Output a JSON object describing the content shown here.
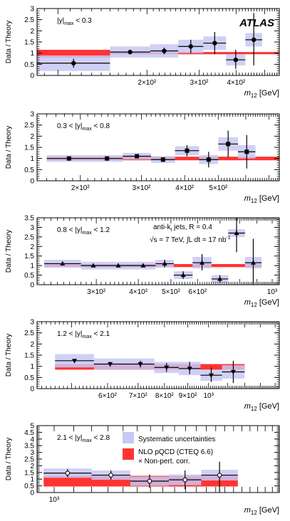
{
  "figure": {
    "experiment_label": "ATLAS",
    "y_axis_label": "Data / Theory",
    "x_axis_label_main": "m",
    "x_axis_label_sub": "12",
    "x_axis_label_unit": " [GeV]",
    "jet_algorithm": "anti-k",
    "jet_algorithm_sub": "t",
    "jet_algorithm_rest": " jets, R = 0.4",
    "energy_lumi": "√s = 7 TeV, ∫L dt = 17 nb",
    "energy_lumi_sup": "-1",
    "legend": {
      "systematic": "Systematic uncertainties",
      "theory_line1": "NLO pQCD (CTEQ 6.6)",
      "theory_line2": "× Non-pert. corr."
    },
    "colors": {
      "systematic_band": "#c8c8f5",
      "theory_band": "#ff3333",
      "points": "#000000"
    }
  },
  "chart_data": [
    {
      "type": "scatter",
      "title": "|y|max < 0.3",
      "x_scale": "log",
      "xlim": [
        85,
        560
      ],
      "ylim": [
        0,
        3
      ],
      "yticks": [
        0,
        0.5,
        1,
        1.5,
        2,
        2.5,
        3
      ],
      "xtick_labels": [
        {
          "x": 200,
          "label": "2×10²"
        },
        {
          "x": 300,
          "label": "3×10²"
        },
        {
          "x": 400,
          "label": "4×10²"
        }
      ],
      "marker": "circle",
      "points": [
        {
          "xlo": 85,
          "xhi": 150,
          "y": 0.55,
          "ylo": 0.35,
          "yhi": 0.75,
          "syst": 0.35
        },
        {
          "xlo": 150,
          "xhi": 205,
          "y": 1.05,
          "ylo": 1.0,
          "yhi": 1.1,
          "syst": 0.25
        },
        {
          "xlo": 205,
          "xhi": 255,
          "y": 1.1,
          "ylo": 0.95,
          "yhi": 1.25,
          "syst": 0.3
        },
        {
          "xlo": 255,
          "xhi": 310,
          "y": 1.3,
          "ylo": 1.0,
          "yhi": 1.6,
          "syst": 0.3
        },
        {
          "xlo": 310,
          "xhi": 370,
          "y": 1.45,
          "ylo": 0.95,
          "yhi": 1.95,
          "syst": 0.3
        },
        {
          "xlo": 370,
          "xhi": 430,
          "y": 0.7,
          "ylo": 0.3,
          "yhi": 1.15,
          "syst": 0.25
        },
        {
          "xlo": 430,
          "xhi": 490,
          "y": 1.6,
          "ylo": 0.45,
          "yhi": 2.8,
          "syst": 0.3
        }
      ],
      "theory": [
        {
          "xlo": 85,
          "xhi": 150,
          "lo": 0.8,
          "hi": 1.15
        },
        {
          "xlo": 150,
          "xhi": 560,
          "lo": 0.95,
          "hi": 1.05
        }
      ]
    },
    {
      "type": "scatter",
      "title": "0.3 < |y|max < 0.8",
      "x_scale": "log",
      "xlim": [
        150,
        750
      ],
      "ylim": [
        0,
        3
      ],
      "yticks": [
        0,
        0.5,
        1,
        1.5,
        2,
        2.5,
        3
      ],
      "xtick_labels": [
        {
          "x": 200,
          "label": "2×10²"
        },
        {
          "x": 300,
          "label": "3×10²"
        },
        {
          "x": 400,
          "label": "4×10²"
        },
        {
          "x": 500,
          "label": "5×10²"
        }
      ],
      "marker": "square",
      "points": [
        {
          "xlo": 160,
          "xhi": 215,
          "y": 1.0,
          "ylo": 0.95,
          "yhi": 1.05,
          "syst": 0.15
        },
        {
          "xlo": 215,
          "xhi": 265,
          "y": 1.0,
          "ylo": 0.95,
          "yhi": 1.05,
          "syst": 0.15
        },
        {
          "xlo": 265,
          "xhi": 320,
          "y": 1.1,
          "ylo": 1.05,
          "yhi": 1.15,
          "syst": 0.15
        },
        {
          "xlo": 320,
          "xhi": 375,
          "y": 0.95,
          "ylo": 0.85,
          "yhi": 1.05,
          "syst": 0.15
        },
        {
          "xlo": 375,
          "xhi": 440,
          "y": 1.35,
          "ylo": 1.1,
          "yhi": 1.6,
          "syst": 0.2
        },
        {
          "xlo": 440,
          "xhi": 500,
          "y": 0.95,
          "ylo": 0.6,
          "yhi": 1.3,
          "syst": 0.2
        },
        {
          "xlo": 500,
          "xhi": 570,
          "y": 1.65,
          "ylo": 1.05,
          "yhi": 2.25,
          "syst": 0.3
        },
        {
          "xlo": 570,
          "xhi": 640,
          "y": 1.3,
          "ylo": 0.55,
          "yhi": 2.05,
          "syst": 0.3
        }
      ],
      "theory": [
        {
          "xlo": 160,
          "xhi": 750,
          "lo": 0.92,
          "hi": 1.08
        }
      ]
    },
    {
      "type": "scatter",
      "title": "0.8 < |y|max < 1.2",
      "x_scale": "log",
      "xlim": [
        200,
        1050
      ],
      "ylim": [
        0,
        3.5
      ],
      "yticks": [
        0,
        0.5,
        1,
        1.5,
        2,
        2.5,
        3,
        3.5
      ],
      "xtick_labels": [
        {
          "x": 300,
          "label": "3×10²"
        },
        {
          "x": 400,
          "label": "4×10²"
        },
        {
          "x": 500,
          "label": "5×10²"
        },
        {
          "x": 600,
          "label": "6×10²"
        },
        {
          "x": 1000,
          "label": "10³"
        }
      ],
      "marker": "triangle-up",
      "points": [
        {
          "xlo": 210,
          "xhi": 270,
          "y": 1.1,
          "ylo": 1.05,
          "yhi": 1.15,
          "syst": 0.2
        },
        {
          "xlo": 270,
          "xhi": 320,
          "y": 1.0,
          "ylo": 0.95,
          "yhi": 1.05,
          "syst": 0.2
        },
        {
          "xlo": 320,
          "xhi": 380,
          "y": 1.0,
          "ylo": 0.95,
          "yhi": 1.05,
          "syst": 0.2
        },
        {
          "xlo": 380,
          "xhi": 450,
          "y": 1.0,
          "ylo": 0.95,
          "yhi": 1.05,
          "syst": 0.2
        },
        {
          "xlo": 450,
          "xhi": 510,
          "y": 1.1,
          "ylo": 0.9,
          "yhi": 1.3,
          "syst": 0.2
        },
        {
          "xlo": 510,
          "xhi": 580,
          "y": 0.5,
          "ylo": 0.3,
          "yhi": 0.7,
          "syst": 0.2
        },
        {
          "xlo": 580,
          "xhi": 660,
          "y": 1.15,
          "ylo": 0.75,
          "yhi": 1.6,
          "syst": 0.3
        },
        {
          "xlo": 660,
          "xhi": 740,
          "y": 0.3,
          "ylo": 0.1,
          "yhi": 0.5,
          "syst": 0.2
        },
        {
          "xlo": 740,
          "xhi": 830,
          "y": 2.7,
          "ylo": 1.7,
          "yhi": 3.5,
          "syst": 0.2
        },
        {
          "xlo": 830,
          "xhi": 930,
          "y": 1.15,
          "ylo": 0.0,
          "yhi": 2.4,
          "syst": 0.3
        }
      ],
      "theory": [
        {
          "xlo": 210,
          "xhi": 930,
          "lo": 0.92,
          "hi": 1.08
        }
      ]
    },
    {
      "type": "scatter",
      "title": "1.2 < |y|max < 2.1",
      "x_scale": "log",
      "xlim": [
        420,
        1430
      ],
      "ylim": [
        0,
        3
      ],
      "yticks": [
        0,
        0.5,
        1,
        1.5,
        2,
        2.5,
        3
      ],
      "xtick_labels": [
        {
          "x": 600,
          "label": "6×10²"
        },
        {
          "x": 700,
          "label": "7×10²"
        },
        {
          "x": 800,
          "label": "8×10²"
        },
        {
          "x": 900,
          "label": "9×10²"
        },
        {
          "x": 1000,
          "label": "10³"
        }
      ],
      "marker": "triangle-down",
      "points": [
        {
          "xlo": 460,
          "xhi": 560,
          "y": 1.25,
          "ylo": 1.2,
          "yhi": 1.3,
          "syst": 0.3
        },
        {
          "xlo": 560,
          "xhi": 660,
          "y": 1.1,
          "ylo": 1.0,
          "yhi": 1.2,
          "syst": 0.25
        },
        {
          "xlo": 660,
          "xhi": 760,
          "y": 1.1,
          "ylo": 0.95,
          "yhi": 1.25,
          "syst": 0.25
        },
        {
          "xlo": 760,
          "xhi": 860,
          "y": 0.95,
          "ylo": 0.75,
          "yhi": 1.15,
          "syst": 0.25
        },
        {
          "xlo": 860,
          "xhi": 960,
          "y": 0.9,
          "ylo": 0.65,
          "yhi": 1.2,
          "syst": 0.3
        },
        {
          "xlo": 960,
          "xhi": 1070,
          "y": 0.6,
          "ylo": 0.3,
          "yhi": 0.95,
          "syst": 0.25
        },
        {
          "xlo": 1070,
          "xhi": 1200,
          "y": 0.75,
          "ylo": 0.25,
          "yhi": 1.25,
          "syst": 0.3
        }
      ],
      "theory": [
        {
          "xlo": 460,
          "xhi": 1200,
          "lo": 0.85,
          "hi": 1.1
        }
      ]
    },
    {
      "type": "scatter",
      "title": "2.1 < |y|max < 2.8",
      "x_scale": "log",
      "xlim": [
        920,
        3000
      ],
      "ylim": [
        0,
        5
      ],
      "yticks": [
        0,
        0.5,
        1,
        1.5,
        2,
        2.5,
        3,
        3.5,
        4,
        4.5,
        5
      ],
      "xtick_labels": [
        {
          "x": 1000,
          "label": "10³"
        }
      ],
      "marker": "circle-open",
      "points": [
        {
          "xlo": 950,
          "xhi": 1200,
          "y": 1.45,
          "ylo": 1.15,
          "yhi": 1.75,
          "syst": 0.35
        },
        {
          "xlo": 1200,
          "xhi": 1450,
          "y": 1.3,
          "ylo": 0.95,
          "yhi": 1.65,
          "syst": 0.35
        },
        {
          "xlo": 1450,
          "xhi": 1750,
          "y": 0.85,
          "ylo": 0.35,
          "yhi": 1.35,
          "syst": 0.35
        },
        {
          "xlo": 1750,
          "xhi": 2050,
          "y": 0.95,
          "ylo": 0.25,
          "yhi": 1.65,
          "syst": 0.4
        },
        {
          "xlo": 2050,
          "xhi": 2450,
          "y": 1.3,
          "ylo": 0.0,
          "yhi": 2.3,
          "syst": 0.4
        }
      ],
      "theory": [
        {
          "xlo": 950,
          "xhi": 2450,
          "lo": 0.45,
          "hi": 1.25
        }
      ]
    }
  ]
}
